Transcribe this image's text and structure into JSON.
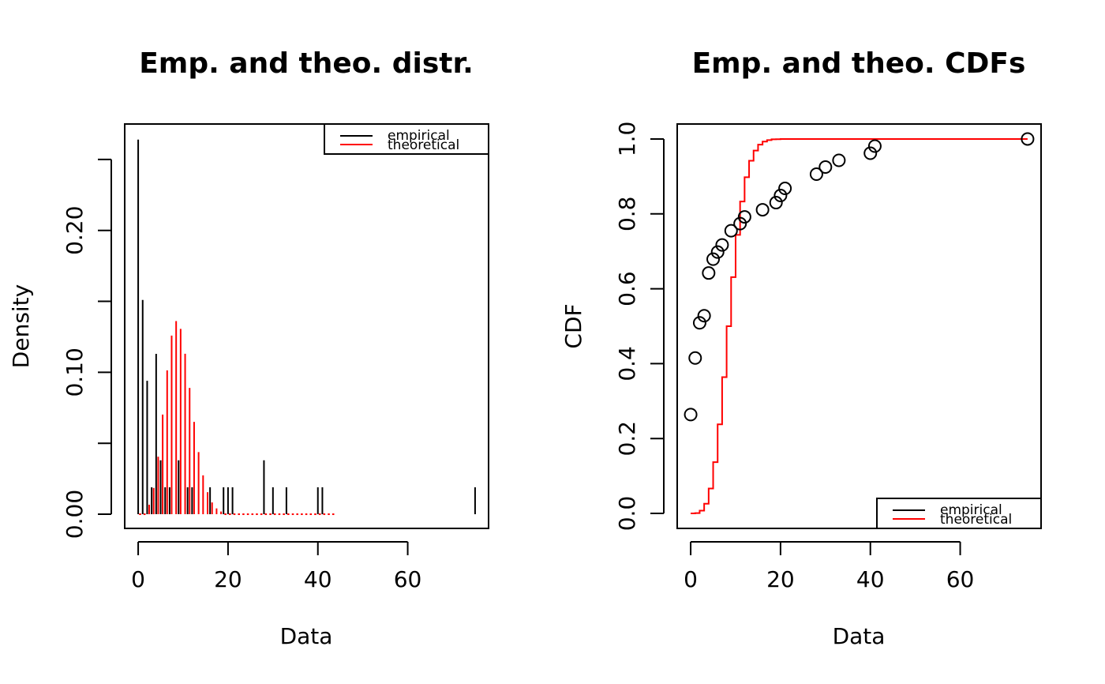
{
  "colors": {
    "empirical": "#000000",
    "theoretical": "#ff0000",
    "frame": "#000000"
  },
  "legend": {
    "empirical": "empirical",
    "theoretical": "theoretical"
  },
  "chart_data": [
    {
      "type": "bar",
      "title": "Emp. and theo. distr.",
      "xlabel": "Data",
      "ylabel": "Density",
      "xlim": [
        -3,
        78
      ],
      "ylim": [
        -0.01,
        0.275
      ],
      "x_ticks": [
        0,
        20,
        40,
        60
      ],
      "x_tick_labels": [
        "0",
        "20",
        "40",
        "60"
      ],
      "y_ticks": [
        0,
        0.05,
        0.1,
        0.15,
        0.2,
        0.25
      ],
      "y_tick_labels": [
        "0.00",
        "",
        "0.10",
        "",
        "0.20",
        ""
      ],
      "legend_position": "top-right",
      "grid": false,
      "series": [
        {
          "name": "empirical",
          "x": [
            0,
            1,
            2,
            3,
            4,
            5,
            6,
            7,
            9,
            11,
            12,
            16,
            19,
            20,
            21,
            28,
            30,
            33,
            40,
            41,
            75
          ],
          "values": [
            0.264,
            0.151,
            0.094,
            0.019,
            0.113,
            0.038,
            0.019,
            0.019,
            0.038,
            0.019,
            0.019,
            0.019,
            0.019,
            0.019,
            0.019,
            0.038,
            0.019,
            0.019,
            0.019,
            0.019,
            0.019
          ]
        },
        {
          "name": "theoretical",
          "x": [
            0,
            1,
            2,
            3,
            4,
            5,
            6,
            7,
            8,
            9,
            10,
            11,
            12,
            13,
            14,
            15,
            16,
            17,
            18,
            19,
            20,
            21,
            22,
            23,
            24,
            25,
            26,
            27,
            28,
            29,
            30,
            31,
            32,
            33,
            34,
            35,
            36,
            37,
            38,
            39,
            40,
            41,
            42,
            43
          ],
          "values": [
            0.0001,
            0.0007,
            0.0067,
            0.0185,
            0.0405,
            0.0702,
            0.1014,
            0.1259,
            0.1361,
            0.1306,
            0.1131,
            0.089,
            0.0651,
            0.0438,
            0.0274,
            0.0155,
            0.0083,
            0.0041,
            0.0019,
            0.0008,
            0.0003,
            0.0001,
            0,
            0,
            0,
            0,
            0,
            0,
            0,
            0,
            0,
            0,
            0,
            0,
            0,
            0,
            0,
            0,
            0,
            0,
            0,
            0,
            0,
            0
          ]
        }
      ]
    },
    {
      "type": "line",
      "title": "Emp. and theo. CDFs",
      "xlabel": "Data",
      "ylabel": "CDF",
      "xlim": [
        -3,
        78
      ],
      "ylim": [
        -0.04,
        1.04
      ],
      "x_ticks": [
        0,
        20,
        40,
        60
      ],
      "x_tick_labels": [
        "0",
        "20",
        "40",
        "60"
      ],
      "y_ticks": [
        0,
        0.2,
        0.4,
        0.6,
        0.8,
        1.0
      ],
      "y_tick_labels": [
        "0.0",
        "0.2",
        "0.4",
        "0.6",
        "0.8",
        "1.0"
      ],
      "legend_position": "bottom-right",
      "grid": false,
      "series": [
        {
          "name": "empirical",
          "x": [
            0,
            1,
            2,
            3,
            4,
            5,
            6,
            7,
            9,
            11,
            12,
            16,
            19,
            20,
            21,
            28,
            30,
            33,
            40,
            41,
            75
          ],
          "values": [
            0.264,
            0.415,
            0.509,
            0.528,
            0.642,
            0.679,
            0.698,
            0.717,
            0.755,
            0.774,
            0.792,
            0.811,
            0.83,
            0.849,
            0.868,
            0.906,
            0.925,
            0.943,
            0.962,
            0.981,
            1.0
          ]
        },
        {
          "name": "theoretical",
          "x": [
            0,
            1,
            2,
            3,
            4,
            5,
            6,
            7,
            8,
            9,
            10,
            11,
            12,
            13,
            14,
            15,
            16,
            17,
            18,
            19,
            20,
            21,
            22,
            75
          ],
          "values": [
            0.0001,
            0.0008,
            0.0075,
            0.026,
            0.0665,
            0.137,
            0.238,
            0.364,
            0.5,
            0.631,
            0.744,
            0.833,
            0.898,
            0.942,
            0.969,
            0.985,
            0.993,
            0.997,
            0.999,
            0.9995,
            0.9998,
            0.9999,
            1.0,
            1.0
          ]
        }
      ]
    }
  ]
}
